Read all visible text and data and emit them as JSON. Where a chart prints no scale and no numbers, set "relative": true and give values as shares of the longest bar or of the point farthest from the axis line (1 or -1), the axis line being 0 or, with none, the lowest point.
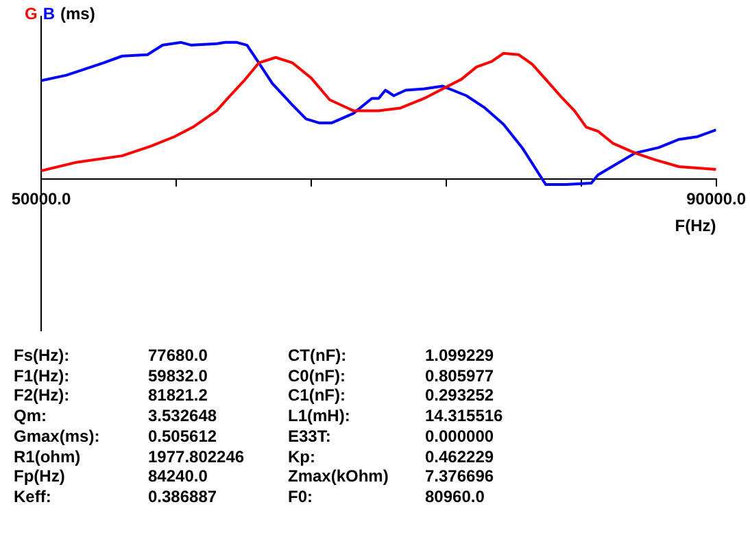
{
  "chart_data": {
    "type": "line",
    "relative": true,
    "xlabel": "F(Hz)",
    "ylabel": "(ms)",
    "legend": "top left",
    "grid": false,
    "marker": "none",
    "line_style": "solid",
    "xlim": [
      50000,
      90000
    ],
    "xticks": [
      {
        "value": 50000,
        "label": "50000.0"
      },
      {
        "value": 58000,
        "label": null
      },
      {
        "value": 66000,
        "label": null
      },
      {
        "value": 74000,
        "label": null
      },
      {
        "value": 82000,
        "label": null
      },
      {
        "value": 90000,
        "label": "90000.0"
      }
    ],
    "series": [
      {
        "name": "G",
        "color": "#ff0000",
        "x": [
          50000,
          52000,
          54800,
          56500,
          57900,
          59000,
          60400,
          61200,
          62100,
          62900,
          63900,
          64900,
          66000,
          67100,
          68500,
          70000,
          71300,
          72700,
          73800,
          74900,
          75800,
          76700,
          77400,
          78300,
          79100,
          79900,
          80900,
          81600,
          82300,
          83000,
          83900,
          85200,
          86400,
          87800,
          88900,
          90000
        ],
        "values": [
          0.06,
          0.12,
          0.17,
          0.24,
          0.31,
          0.38,
          0.5,
          0.61,
          0.73,
          0.85,
          0.89,
          0.85,
          0.74,
          0.58,
          0.5,
          0.5,
          0.52,
          0.59,
          0.66,
          0.73,
          0.82,
          0.86,
          0.92,
          0.91,
          0.84,
          0.73,
          0.59,
          0.5,
          0.38,
          0.35,
          0.26,
          0.19,
          0.14,
          0.09,
          0.08,
          0.07
        ]
      },
      {
        "name": "B",
        "color": "#0000ff",
        "x": [
          50000,
          51500,
          53700,
          54800,
          56300,
          57200,
          58300,
          58900,
          60400,
          60900,
          61600,
          62200,
          62900,
          63700,
          64900,
          65700,
          66500,
          67200,
          68500,
          69600,
          70000,
          70400,
          70900,
          71600,
          72700,
          73800,
          75200,
          76300,
          77400,
          78500,
          79900,
          81100,
          82600,
          83000,
          84100,
          85200,
          86600,
          87800,
          88900,
          90000
        ],
        "values": [
          0.72,
          0.76,
          0.85,
          0.9,
          0.91,
          0.98,
          1,
          0.98,
          0.99,
          1,
          1,
          0.98,
          0.85,
          0.7,
          0.54,
          0.44,
          0.41,
          0.41,
          0.48,
          0.59,
          0.59,
          0.65,
          0.61,
          0.65,
          0.66,
          0.68,
          0.61,
          0.52,
          0.4,
          0.23,
          -0.04,
          -0.04,
          -0.03,
          0.03,
          0.11,
          0.19,
          0.23,
          0.29,
          0.31,
          0.36
        ]
      }
    ],
    "annotations": [
      "Fs(Hz):",
      "77680.0",
      "CT(nF):",
      "1.099229",
      "F1(Hz):",
      "59832.0",
      "C0(nF):",
      "0.805977",
      "F2(Hz):",
      "81821.2",
      "C1(nF):",
      "0.293252",
      "Qm:",
      "3.532648",
      "L1(mH):",
      "14.315516",
      "Gmax(ms):",
      "0.505612",
      "E33T:",
      "0.000000",
      "R1(ohm)",
      "1977.802246",
      "Kp:",
      "0.462229",
      "Fp(Hz)",
      "84240.0",
      "Zmax(kOhm)",
      "7.376696",
      "Keff:",
      "0.386887",
      "F0:",
      "80960.0"
    ]
  }
}
